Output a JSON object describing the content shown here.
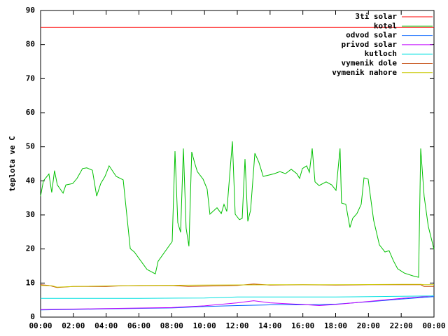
{
  "chart_data": {
    "type": "line",
    "y_label": "teplota ve C",
    "xlim": [
      0,
      24
    ],
    "ylim": [
      0,
      90
    ],
    "yticks": [
      0,
      10,
      20,
      30,
      40,
      50,
      60,
      70,
      80,
      90
    ],
    "xticks": [
      {
        "value": 0,
        "label": "00:00"
      },
      {
        "value": 2,
        "label": "02:00"
      },
      {
        "value": 4,
        "label": "04:00"
      },
      {
        "value": 6,
        "label": "06:00"
      },
      {
        "value": 8,
        "label": "08:00"
      },
      {
        "value": 10,
        "label": "10:00"
      },
      {
        "value": 12,
        "label": "12:00"
      },
      {
        "value": 14,
        "label": "14:00"
      },
      {
        "value": 16,
        "label": "16:00"
      },
      {
        "value": 18,
        "label": "18:00"
      },
      {
        "value": 20,
        "label": "20:00"
      },
      {
        "value": 22,
        "label": "22:00"
      },
      {
        "value": 24,
        "label": "00:00"
      }
    ],
    "legend": "top-right",
    "series": [
      {
        "name": "3ti solar",
        "color": "#ff0000",
        "x": [
          0,
          24
        ],
        "values": [
          85,
          85
        ]
      },
      {
        "name": "kotel",
        "color": "#00c000",
        "x": [
          0,
          0.17,
          0.51,
          0.68,
          0.85,
          1.02,
          1.37,
          1.54,
          1.96,
          2.22,
          2.56,
          2.82,
          3.16,
          3.42,
          3.67,
          3.93,
          4.18,
          4.61,
          5.04,
          5.47,
          5.72,
          6.49,
          7.0,
          7.17,
          8.03,
          8.2,
          8.37,
          8.54,
          8.71,
          8.88,
          9.05,
          9.22,
          9.39,
          9.56,
          9.91,
          10.16,
          10.33,
          10.76,
          11.02,
          11.19,
          11.36,
          11.7,
          11.87,
          12.13,
          12.3,
          12.47,
          12.64,
          12.81,
          13.07,
          13.32,
          13.58,
          13.92,
          14.26,
          14.6,
          14.94,
          15.29,
          15.63,
          15.8,
          15.97,
          16.23,
          16.4,
          16.57,
          16.74,
          16.99,
          17.42,
          17.76,
          18.02,
          18.27,
          18.36,
          18.62,
          18.87,
          19.04,
          19.3,
          19.56,
          19.73,
          19.98,
          20.32,
          20.67,
          21.01,
          21.26,
          21.52,
          21.78,
          22.2,
          22.72,
          23.06,
          23.19,
          23.4,
          23.65,
          24
        ],
        "values": [
          35.5,
          40,
          42,
          36.6,
          43,
          38.8,
          36.4,
          38.8,
          39.2,
          40.7,
          43.6,
          43.8,
          43.1,
          35.5,
          39.2,
          41.3,
          44.4,
          41.3,
          40.3,
          20.1,
          19.1,
          14,
          12.7,
          16.4,
          22.2,
          48.7,
          27.7,
          24.9,
          49.5,
          26.1,
          20.8,
          48.5,
          45.4,
          42.7,
          40.5,
          37.6,
          30.2,
          32.1,
          30.4,
          33.1,
          31,
          51.6,
          30.2,
          28.6,
          29,
          46.4,
          28.1,
          31.4,
          48.1,
          45.4,
          41.3,
          41.7,
          42.1,
          42.7,
          42.1,
          43.4,
          42.1,
          40.7,
          43.6,
          44.4,
          42.5,
          49.5,
          39.7,
          38.6,
          39.7,
          38.8,
          37.2,
          49.5,
          33.5,
          33.1,
          26.3,
          29,
          30.4,
          33.1,
          40.9,
          40.5,
          28.4,
          21.2,
          19.1,
          19.5,
          16.6,
          14.2,
          12.9,
          12.1,
          11.7,
          49.5,
          35.5,
          26.7,
          19.9
        ]
      },
      {
        "name": "odvod solar",
        "color": "#0060ff",
        "x": [
          0,
          4,
          8,
          10,
          12,
          14,
          16,
          18,
          20,
          22,
          24
        ],
        "values": [
          2.1,
          2.4,
          2.7,
          3.1,
          3.4,
          3.6,
          3.6,
          3.8,
          4.5,
          5.3,
          6.0
        ]
      },
      {
        "name": "privod solar",
        "color": "#c000ff",
        "x": [
          0,
          4,
          8,
          10,
          12,
          13,
          14,
          16,
          17,
          18,
          20,
          22,
          24
        ],
        "values": [
          2.2,
          2.5,
          2.8,
          3.3,
          4.2,
          4.8,
          4.2,
          3.7,
          3.4,
          3.7,
          4.6,
          5.5,
          6.2
        ]
      },
      {
        "name": "kutloch",
        "color": "#00e0e0",
        "x": [
          0,
          6,
          10,
          12,
          18,
          22,
          24
        ],
        "values": [
          5.5,
          5.5,
          5.6,
          5.9,
          5.9,
          6.1,
          6.2
        ]
      },
      {
        "name": "vymenik dole",
        "color": "#c04000",
        "x": [
          0,
          0.5,
          1,
          2,
          4,
          5,
          8,
          9,
          11,
          12,
          13,
          14,
          16,
          18,
          20,
          22,
          23.2,
          23.4,
          24
        ],
        "values": [
          9.5,
          9.3,
          8.7,
          9,
          9,
          9.2,
          9.3,
          9,
          9.2,
          9.3,
          9.7,
          9.4,
          9.5,
          9.4,
          9.5,
          9.5,
          9.5,
          9,
          9
        ]
      },
      {
        "name": "vymenik nahore",
        "color": "#c8c800",
        "x": [
          0,
          0.7,
          1,
          2,
          6,
          10,
          14,
          18,
          22,
          23.2,
          23.4,
          24
        ],
        "values": [
          9.3,
          9.2,
          8.8,
          9,
          9.3,
          9.4,
          9.5,
          9.5,
          9.6,
          9.6,
          9.5,
          9.5
        ]
      }
    ]
  }
}
